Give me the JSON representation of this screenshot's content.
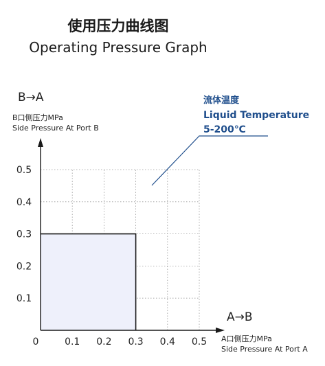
{
  "title": "使用压力曲线图",
  "subtitle": "Operating Pressure Graph",
  "annotation": {
    "lines": [
      "流体温度",
      "Liquid Temperature",
      "5-200℃"
    ],
    "color": "#1f4e8c"
  },
  "chart_data": {
    "type": "area",
    "x": [
      0,
      0.3
    ],
    "series": [
      {
        "values": [
          0.3,
          0.3
        ]
      }
    ],
    "fill_color": "#eef0fb",
    "xlim": [
      0,
      0.5
    ],
    "ylim": [
      0,
      0.5
    ],
    "x_ticks": [
      "0",
      "0.1",
      "0.2",
      "0.3",
      "0.4",
      "0.5"
    ],
    "y_ticks": [
      "0.1",
      "0.2",
      "0.3",
      "0.4",
      "0.5"
    ],
    "x_direction": "A→B",
    "y_direction": "B→A",
    "xlabel": [
      "A口侧压力MPa",
      "Side Pressure At Port A"
    ],
    "ylabel": [
      "B口侧压力MPa",
      "Side Pressure At Port B"
    ],
    "grid": true,
    "grid_style": "dotted"
  }
}
